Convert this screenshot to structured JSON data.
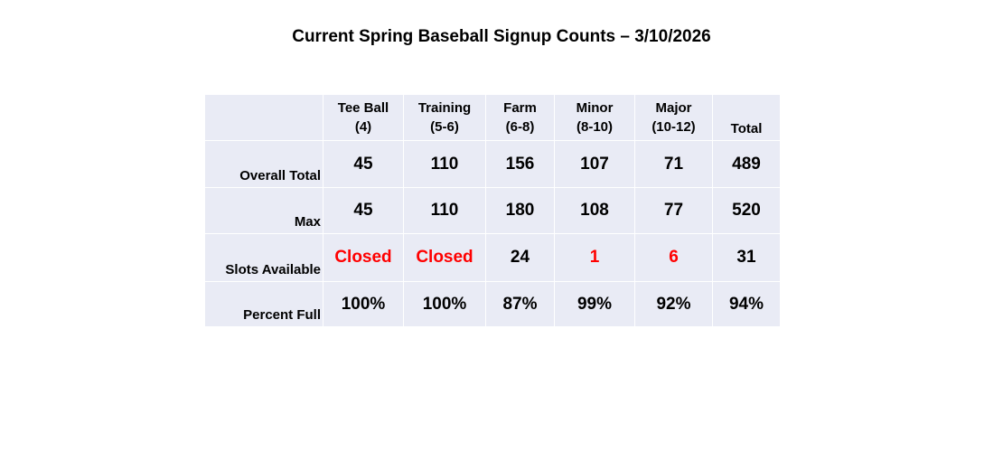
{
  "title": "Current Spring Baseball Signup Counts – 3/10/2026",
  "table": {
    "columns": [
      {
        "line1": "Tee Ball",
        "line2": "(4)"
      },
      {
        "line1": "Training",
        "line2": "(5-6)"
      },
      {
        "line1": "Farm",
        "line2": "(6-8)"
      },
      {
        "line1": "Minor",
        "line2": "(8-10)"
      },
      {
        "line1": "Major",
        "line2": "(10-12)"
      },
      {
        "line1": "Total",
        "line2": ""
      }
    ],
    "rows": [
      {
        "label": "Overall Total",
        "values": [
          "45",
          "110",
          "156",
          "107",
          "71",
          "489"
        ]
      },
      {
        "label": "Max",
        "values": [
          "45",
          "110",
          "180",
          "108",
          "77",
          "520"
        ]
      },
      {
        "label": "Slots Available",
        "values": [
          "Closed",
          "Closed",
          "24",
          "1",
          "6",
          "31"
        ]
      },
      {
        "label": "Percent Full",
        "values": [
          "100%",
          "100%",
          "87%",
          "99%",
          "92%",
          "94%"
        ]
      }
    ],
    "colors": {
      "cell_background": "#e9ebf5",
      "highlight_text": "#ff0000"
    }
  }
}
